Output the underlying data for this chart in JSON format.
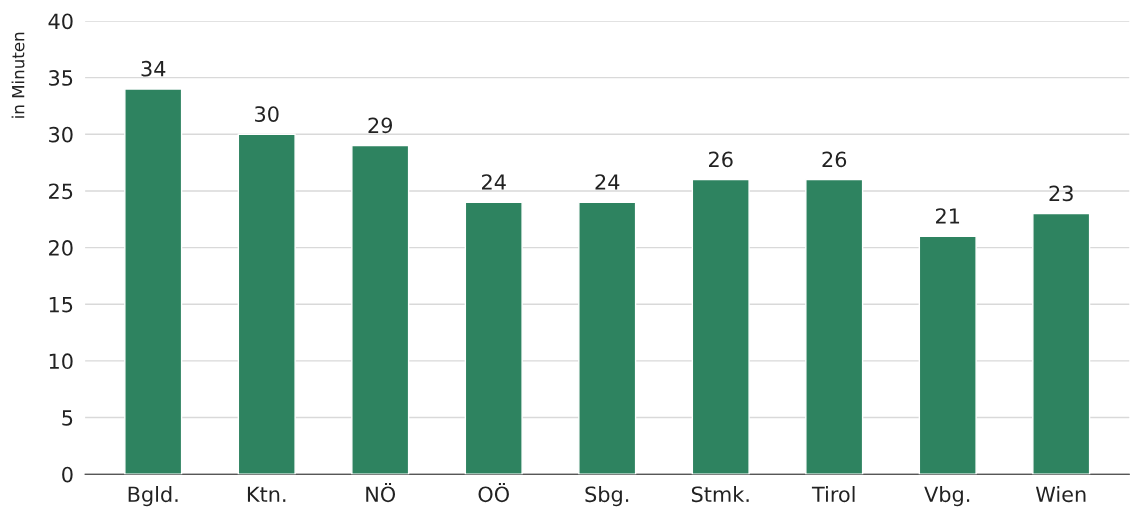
{
  "chart_data": {
    "type": "bar",
    "ylabel": "in Minuten",
    "categories": [
      "Bgld.",
      "Ktn.",
      "NÖ",
      "OÖ",
      "Sbg.",
      "Stmk.",
      "Tirol",
      "Vbg.",
      "Wien"
    ],
    "values": [
      34,
      30,
      29,
      24,
      24,
      26,
      26,
      21,
      23
    ],
    "color": "#2e8360",
    "ylim": [
      0,
      40
    ],
    "yticks": [
      0,
      5,
      10,
      15,
      20,
      25,
      30,
      35,
      40
    ],
    "grid": "y",
    "data_labels": true
  }
}
